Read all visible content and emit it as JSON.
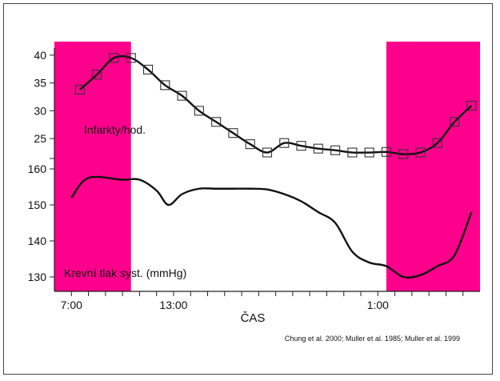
{
  "chart_data": [
    {
      "type": "line",
      "name": "infarcts",
      "series_label": "Infarkty/hod.",
      "marker": "square",
      "yticks": [
        25,
        30,
        35,
        40
      ],
      "ylim": [
        22,
        42
      ],
      "x": [
        7.5,
        8.5,
        9.5,
        10.5,
        11.5,
        12.5,
        13.5,
        14.5,
        15.5,
        16.5,
        17.5,
        18.5,
        19.5,
        20.5,
        21.5,
        22.5,
        23.5,
        24.5,
        25.5,
        26.5,
        27.5,
        28.5,
        29.5,
        30.5
      ],
      "values": [
        33.8,
        36.5,
        39.5,
        39.5,
        37.4,
        34.6,
        32.7,
        30.0,
        28.0,
        26.0,
        24.0,
        22.5,
        24.2,
        23.7,
        23.2,
        22.9,
        22.5,
        22.5,
        22.6,
        22.2,
        22.5,
        24.2,
        28.0,
        30.9
      ]
    },
    {
      "type": "line",
      "name": "blood-pressure",
      "series_label": "Krevní tlak syst. (mmHg)",
      "yticks": [
        130,
        140,
        150,
        160
      ],
      "ylim": [
        128,
        162
      ],
      "x": [
        7.0,
        8.0,
        10.0,
        11.0,
        12.0,
        12.7,
        13.5,
        14.5,
        15.5,
        16.5,
        17.5,
        18.5,
        19.5,
        20.5,
        21.5,
        22.5,
        23.5,
        24.5,
        25.5,
        26.5,
        27.5,
        28.5,
        29.5,
        30.5
      ],
      "values": [
        152,
        157.5,
        157,
        157,
        154,
        150,
        153,
        154.5,
        154.5,
        154.5,
        154.5,
        154.3,
        153,
        151,
        148,
        145,
        137,
        134,
        133,
        130,
        130.5,
        133,
        136,
        148
      ]
    }
  ],
  "chart_meta": {
    "xlabel": "ČAS",
    "xticks": [
      {
        "value": 7,
        "label": "7:00"
      },
      {
        "value": 13,
        "label": "13:00"
      },
      {
        "value": 25,
        "label": "1:00"
      }
    ],
    "xlim": [
      6,
      31
    ],
    "minor_ticks": [
      7,
      8,
      9,
      10,
      11,
      12,
      13,
      14,
      15,
      16,
      17,
      18,
      19,
      20,
      21,
      22,
      23,
      24,
      25,
      26,
      27,
      28,
      29,
      30
    ],
    "highlight_bands": [
      {
        "from": 6,
        "to": 10.5
      },
      {
        "from": 25.5,
        "to": 31
      }
    ],
    "colors": {
      "highlight": "#ff008c",
      "line": "#111111",
      "marker_edge": "#333333",
      "axis": "#222222"
    },
    "citation": "Chung et al. 2000; Muller et al. 1985; Muller et al. 1999"
  }
}
